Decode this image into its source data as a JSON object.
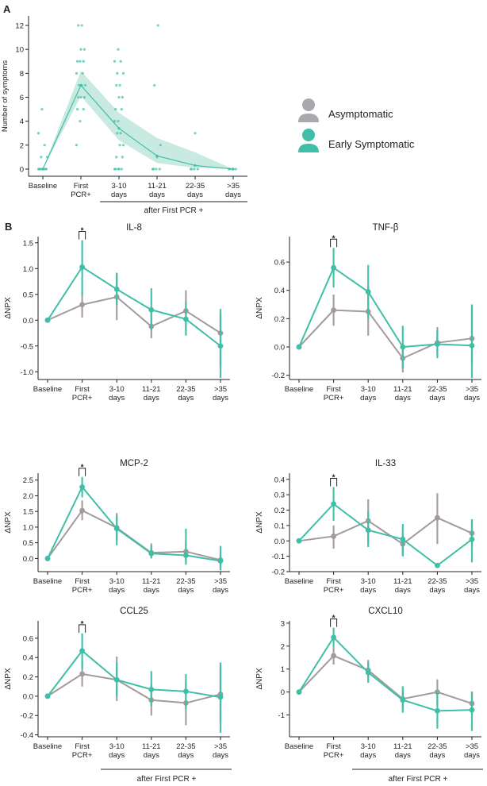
{
  "figure": {
    "panel_a_label": "A",
    "panel_b_label": "B",
    "legend": {
      "asymptomatic": {
        "label": "Asymptomatic",
        "color": "#a8a0a0"
      },
      "early_symptomatic": {
        "label": "Early Symptomatic",
        "color": "#3fbfa8"
      }
    },
    "group_label": "after First PCR +",
    "significance_marker": "*",
    "colors": {
      "asym": "#a39b9b",
      "early": "#3fbfa8",
      "band": "#bfe6da",
      "icon": "#a7a9ac"
    }
  },
  "chart_data": [
    {
      "id": "symptoms",
      "type": "line",
      "title": "",
      "xlabel": "",
      "ylabel": "Number of symptoms",
      "categories": [
        "Baseline",
        "First PCR+",
        "3-10 days",
        "11-21 days",
        "22-35 days",
        ">35 days"
      ],
      "ylim": [
        -0.6,
        12.8
      ],
      "yticks": [
        0,
        2,
        4,
        6,
        8,
        10,
        12
      ],
      "series": [
        {
          "name": "Early Symptomatic",
          "values": [
            0,
            7,
            3.4,
            1.1,
            0.3,
            0
          ]
        }
      ],
      "band_lower": [
        0,
        6.1,
        2.4,
        0.5,
        0.1,
        0
      ],
      "band_upper": [
        0,
        8.2,
        4.7,
        2.6,
        1.4,
        0
      ],
      "scatter": [
        {
          "x": 0,
          "ys": [
            0,
            0,
            0,
            0,
            0,
            0,
            0,
            0,
            1,
            1,
            2,
            3,
            5
          ]
        },
        {
          "x": 1,
          "ys": [
            2,
            4,
            5,
            5,
            6,
            6,
            6,
            7,
            7,
            7,
            8,
            8,
            9,
            9,
            9,
            10,
            10,
            12,
            12
          ]
        },
        {
          "x": 2,
          "ys": [
            0,
            0,
            0,
            0,
            0,
            1,
            1,
            2,
            2,
            3,
            3,
            4,
            4,
            5,
            5,
            6,
            6,
            7,
            7,
            8,
            8,
            9,
            9,
            10
          ]
        },
        {
          "x": 3,
          "ys": [
            0,
            0,
            0,
            0,
            1,
            2,
            7,
            12
          ]
        },
        {
          "x": 4,
          "ys": [
            0,
            0,
            0,
            0,
            3
          ]
        },
        {
          "x": 5,
          "ys": [
            0,
            0,
            0,
            0,
            0
          ]
        }
      ]
    },
    {
      "id": "il8",
      "type": "line",
      "title": "IL-8",
      "ylabel": "ΔNPX",
      "categories": [
        "Baseline",
        "First PCR+",
        "3-10 days",
        "11-21 days",
        "22-35 days",
        ">35 days"
      ],
      "ylim": [
        -1.15,
        1.62
      ],
      "yticks": [
        -1.0,
        -0.5,
        0.0,
        0.5,
        1.0,
        1.5
      ],
      "yticklabels": [
        "-1.0",
        "-0.5",
        "0.0",
        "0.5",
        "1.0",
        "1.5"
      ],
      "series": [
        {
          "name": "Asymptomatic",
          "values": [
            0,
            0.3,
            0.45,
            -0.12,
            0.18,
            -0.25
          ],
          "err_low": [
            0,
            0.05,
            0.0,
            -0.35,
            -0.2,
            -0.9
          ],
          "err_high": [
            0,
            0.55,
            0.92,
            0.15,
            0.58,
            0.12
          ]
        },
        {
          "name": "Early Symptomatic",
          "values": [
            0,
            1.03,
            0.6,
            0.2,
            0.02,
            -0.5
          ],
          "err_low": [
            0,
            0.5,
            0.3,
            -0.2,
            -0.3,
            -1.12
          ],
          "err_high": [
            0,
            1.55,
            0.9,
            0.62,
            0.35,
            0.22
          ]
        }
      ],
      "significance_at": 1
    },
    {
      "id": "tnfb",
      "type": "line",
      "title": "TNF-β",
      "ylabel": "ΔNPX",
      "categories": [
        "Baseline",
        "First PCR+",
        "3-10 days",
        "11-21 days",
        "22-35 days",
        ">35 days"
      ],
      "ylim": [
        -0.23,
        0.78
      ],
      "yticks": [
        -0.2,
        0.0,
        0.2,
        0.4,
        0.6
      ],
      "yticklabels": [
        "-0.2",
        "0.0",
        "0.2",
        "0.4",
        "0.6"
      ],
      "series": [
        {
          "name": "Asymptomatic",
          "values": [
            0,
            0.26,
            0.25,
            -0.08,
            0.03,
            0.06
          ],
          "err_low": [
            0,
            0.15,
            0.08,
            -0.18,
            -0.05,
            -0.12
          ],
          "err_high": [
            0,
            0.37,
            0.43,
            0.02,
            0.14,
            0.29
          ]
        },
        {
          "name": "Early Symptomatic",
          "values": [
            0,
            0.56,
            0.39,
            0.0,
            0.02,
            0.01
          ],
          "err_low": [
            0,
            0.42,
            0.2,
            -0.15,
            -0.08,
            -0.22
          ],
          "err_high": [
            0,
            0.7,
            0.58,
            0.15,
            0.12,
            0.3
          ]
        }
      ],
      "significance_at": 1
    },
    {
      "id": "mcp2",
      "type": "line",
      "title": "MCP-2",
      "ylabel": "ΔNPX",
      "categories": [
        "Baseline",
        "First PCR+",
        "3-10 days",
        "11-21 days",
        "22-35 days",
        ">35 days"
      ],
      "ylim": [
        -0.42,
        2.72
      ],
      "yticks": [
        0.0,
        0.5,
        1.0,
        1.5,
        2.0,
        2.5
      ],
      "yticklabels": [
        "0.0",
        "0.5",
        "1.0",
        "1.5",
        "2.0",
        "2.5"
      ],
      "series": [
        {
          "name": "Asymptomatic",
          "values": [
            0,
            1.53,
            0.98,
            0.18,
            0.22,
            -0.05
          ],
          "err_low": [
            0,
            1.22,
            0.58,
            0.02,
            -0.1,
            -0.3
          ],
          "err_high": [
            0,
            1.85,
            1.45,
            0.48,
            0.55,
            0.2
          ]
        },
        {
          "name": "Early Symptomatic",
          "values": [
            0,
            2.28,
            0.95,
            0.16,
            0.1,
            -0.08
          ],
          "err_low": [
            0,
            1.95,
            0.42,
            0.0,
            -0.2,
            -0.38
          ],
          "err_high": [
            0,
            2.6,
            1.38,
            0.42,
            0.95,
            0.4
          ]
        }
      ],
      "significance_at": 1
    },
    {
      "id": "il33",
      "type": "line",
      "title": "IL-33",
      "ylabel": "ΔNPX",
      "categories": [
        "Baseline",
        "First PCR+",
        "3-10 days",
        "11-21 days",
        "22-35 days",
        ">35 days"
      ],
      "ylim": [
        -0.2,
        0.44
      ],
      "yticks": [
        -0.2,
        -0.1,
        0.0,
        0.1,
        0.2,
        0.3,
        0.4
      ],
      "yticklabels": [
        "-0.2",
        "-0.1",
        "0.0",
        "0.1",
        "0.2",
        "0.3",
        "0.4"
      ],
      "series": [
        {
          "name": "Asymptomatic",
          "values": [
            0,
            0.03,
            0.13,
            -0.02,
            0.15,
            0.05
          ],
          "err_low": [
            0,
            -0.05,
            -0.02,
            -0.1,
            -0.02,
            -0.04
          ],
          "err_high": [
            0,
            0.1,
            0.27,
            0.05,
            0.31,
            0.14
          ]
        },
        {
          "name": "Early Symptomatic",
          "values": [
            0,
            0.24,
            0.07,
            0.01,
            -0.16,
            0.01
          ],
          "err_low": [
            0,
            0.13,
            -0.04,
            -0.1,
            -0.17,
            -0.14
          ],
          "err_high": [
            0,
            0.35,
            0.19,
            0.11,
            -0.15,
            0.14
          ]
        }
      ],
      "significance_at": 1
    },
    {
      "id": "ccl25",
      "type": "line",
      "title": "CCL25",
      "ylabel": "ΔNPX",
      "categories": [
        "Baseline",
        "First PCR+",
        "3-10 days",
        "11-21 days",
        "22-35 days",
        ">35 days"
      ],
      "ylim": [
        -0.42,
        0.78
      ],
      "yticks": [
        -0.4,
        -0.2,
        0.0,
        0.2,
        0.4,
        0.6
      ],
      "yticklabels": [
        "-0.4",
        "-0.2",
        "0.0",
        "0.2",
        "0.4",
        "0.6"
      ],
      "series": [
        {
          "name": "Asymptomatic",
          "values": [
            0,
            0.23,
            0.17,
            -0.04,
            -0.07,
            0.02
          ],
          "err_low": [
            0,
            0.1,
            -0.05,
            -0.2,
            -0.3,
            -0.25
          ],
          "err_high": [
            0,
            0.37,
            0.41,
            0.12,
            0.15,
            0.32
          ]
        },
        {
          "name": "Early Symptomatic",
          "values": [
            0,
            0.47,
            0.17,
            0.07,
            0.05,
            -0.01
          ],
          "err_low": [
            0,
            0.28,
            0.0,
            -0.1,
            -0.13,
            -0.38
          ],
          "err_high": [
            0,
            0.65,
            0.35,
            0.26,
            0.23,
            0.35
          ]
        }
      ],
      "significance_at": 1
    },
    {
      "id": "cxcl10",
      "type": "line",
      "title": "CXCL10",
      "ylabel": "ΔNPX",
      "categories": [
        "Baseline",
        "First PCR+",
        "3-10 days",
        "11-21 days",
        "22-35 days",
        ">35 days"
      ],
      "ylim": [
        -1.95,
        3.1
      ],
      "yticks": [
        -1,
        0,
        1,
        2,
        3
      ],
      "yticklabels": [
        "-1",
        "0",
        "1",
        "2",
        "3"
      ],
      "series": [
        {
          "name": "Asymptomatic",
          "values": [
            0,
            1.58,
            0.95,
            -0.3,
            0.0,
            -0.5
          ],
          "err_low": [
            0,
            1.2,
            0.5,
            -0.7,
            -0.6,
            -1.0
          ],
          "err_high": [
            0,
            1.95,
            1.4,
            0.05,
            0.55,
            0.0
          ]
        },
        {
          "name": "Early Symptomatic",
          "values": [
            0,
            2.38,
            0.85,
            -0.35,
            -0.82,
            -0.78
          ],
          "err_low": [
            0,
            1.95,
            0.4,
            -0.9,
            -1.6,
            -1.7
          ],
          "err_high": [
            0,
            2.8,
            1.3,
            0.25,
            0.05,
            0.02
          ]
        }
      ],
      "significance_at": 1
    }
  ]
}
